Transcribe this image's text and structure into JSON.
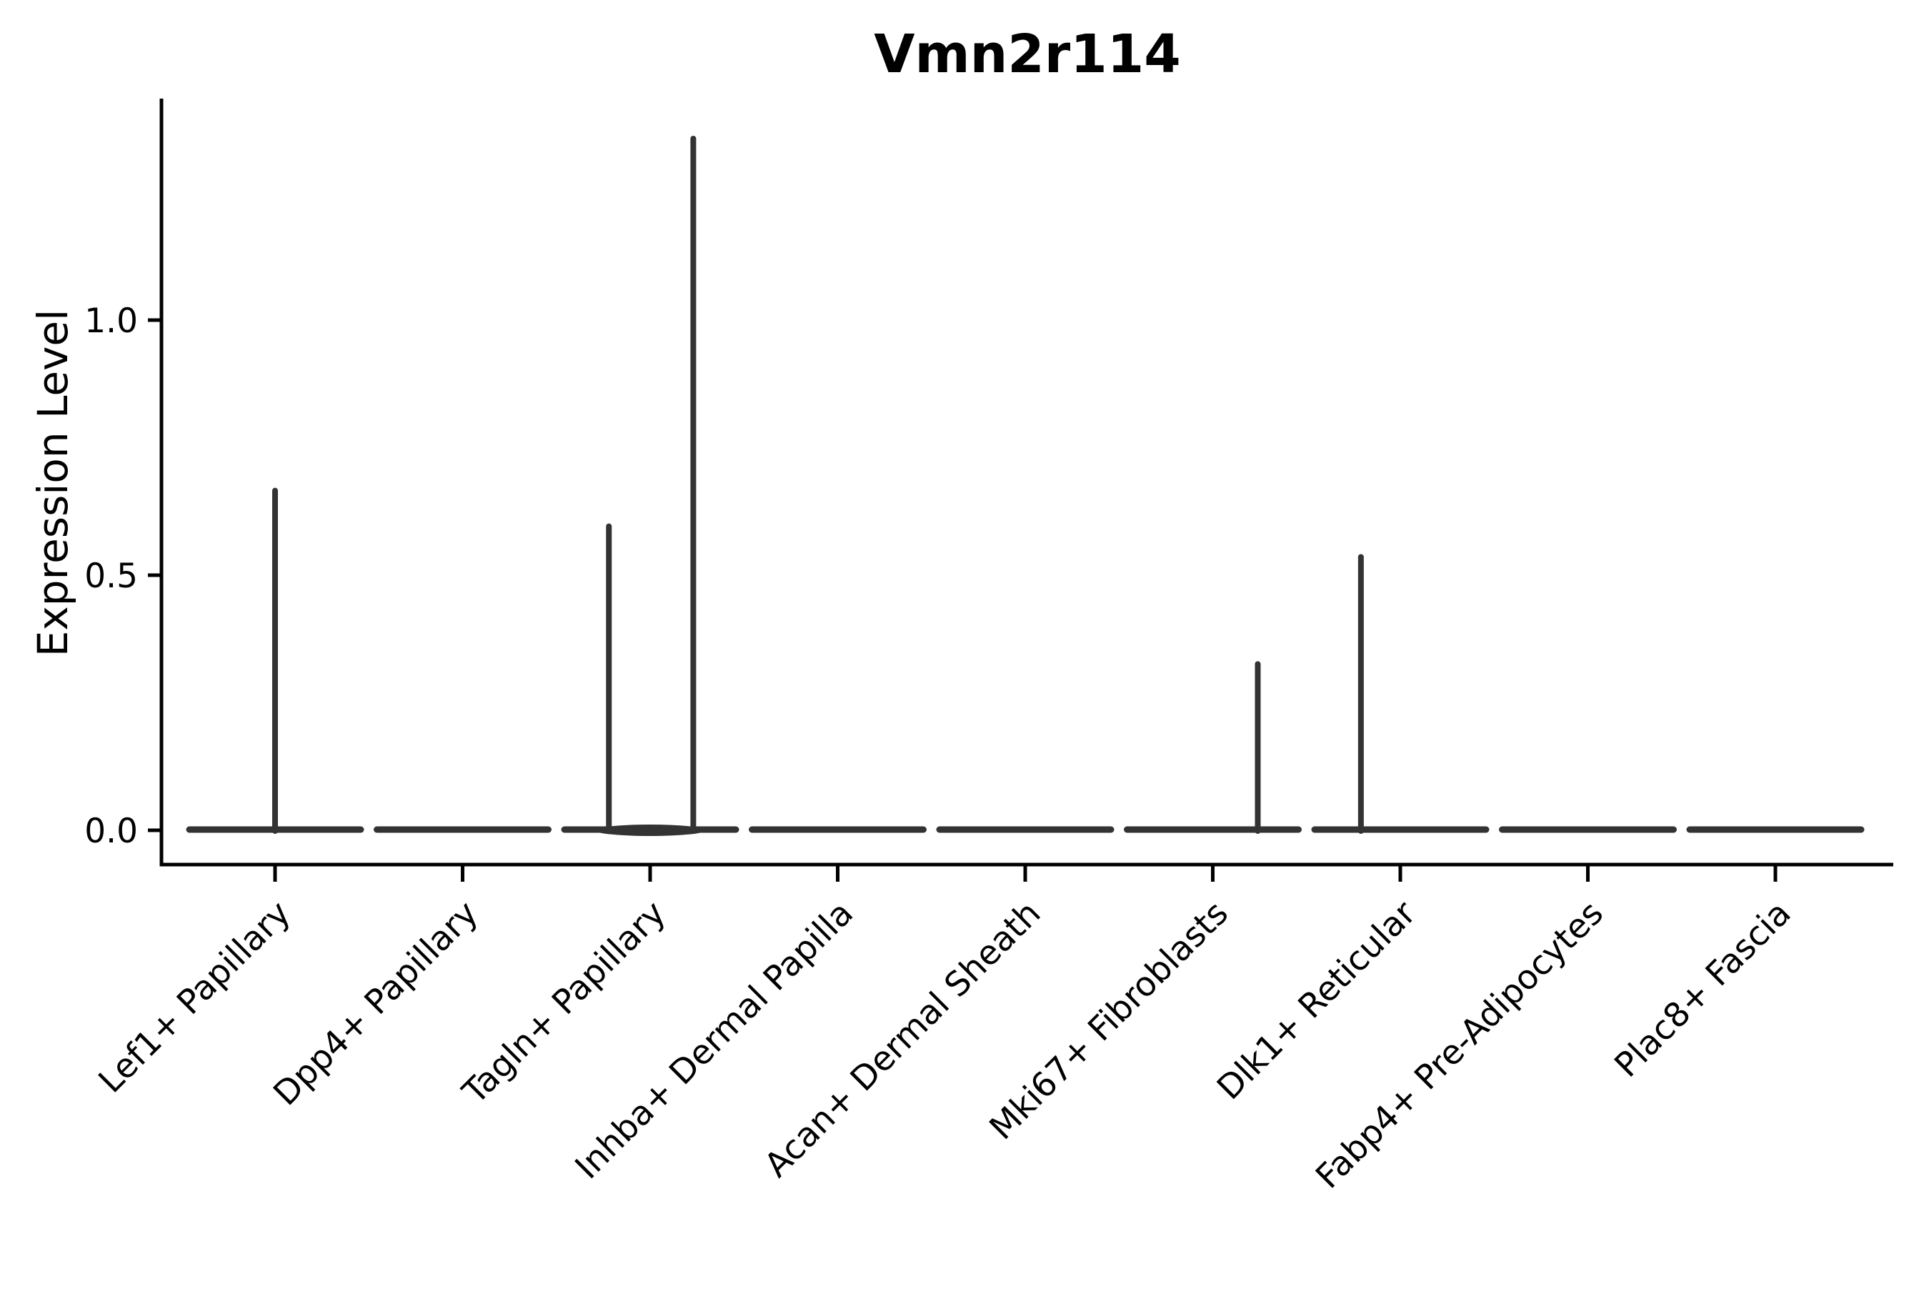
{
  "figure": {
    "background": "#ffffff"
  },
  "chart_data": {
    "type": "violin",
    "title": "Vmn2r114",
    "xlabel": "",
    "ylabel": "Expression Level",
    "yticks": [
      "0.0",
      "0.5",
      "1.0"
    ],
    "ytick_values": [
      0,
      0.5,
      1.0
    ],
    "ylim": [
      -0.07,
      1.43
    ],
    "grid": false,
    "legend": false,
    "violin_color": "#333333",
    "axis_color": "#000000",
    "categories": [
      "Lef1+ Papillary",
      "Dpp4+ Papillary",
      "Tagln+ Papillary",
      "Inhba+ Dermal Papilla",
      "Acan+ Dermal Sheath",
      "Mki67+ Fibroblasts",
      "Dlk1+ Reticular",
      "Fabp4+ Pre-Adipocytes",
      "Plac8+ Fascia"
    ],
    "series": [
      {
        "name": "Lef1+ Papillary",
        "baseline_value": 0,
        "bulge": false,
        "spikes": [
          {
            "offset": 0.0,
            "value": 0.67
          }
        ]
      },
      {
        "name": "Dpp4+ Papillary",
        "baseline_value": 0,
        "bulge": false,
        "spikes": []
      },
      {
        "name": "Tagln+ Papillary",
        "baseline_value": 0,
        "bulge": true,
        "spikes": [
          {
            "offset": -0.22,
            "value": 0.6
          },
          {
            "offset": 0.23,
            "value": 1.36
          }
        ]
      },
      {
        "name": "Inhba+ Dermal Papilla",
        "baseline_value": 0,
        "bulge": false,
        "spikes": []
      },
      {
        "name": "Acan+ Dermal Sheath",
        "baseline_value": 0,
        "bulge": false,
        "spikes": []
      },
      {
        "name": "Mki67+ Fibroblasts",
        "baseline_value": 0,
        "bulge": false,
        "spikes": [
          {
            "offset": 0.24,
            "value": 0.33
          }
        ]
      },
      {
        "name": "Dlk1+ Reticular",
        "baseline_value": 0,
        "bulge": false,
        "spikes": [
          {
            "offset": -0.21,
            "value": 0.54
          }
        ]
      },
      {
        "name": "Fabp4+ Pre-Adipocytes",
        "baseline_value": 0,
        "bulge": false,
        "spikes": []
      },
      {
        "name": "Plac8+ Fascia",
        "baseline_value": 0,
        "bulge": false,
        "spikes": []
      }
    ]
  }
}
